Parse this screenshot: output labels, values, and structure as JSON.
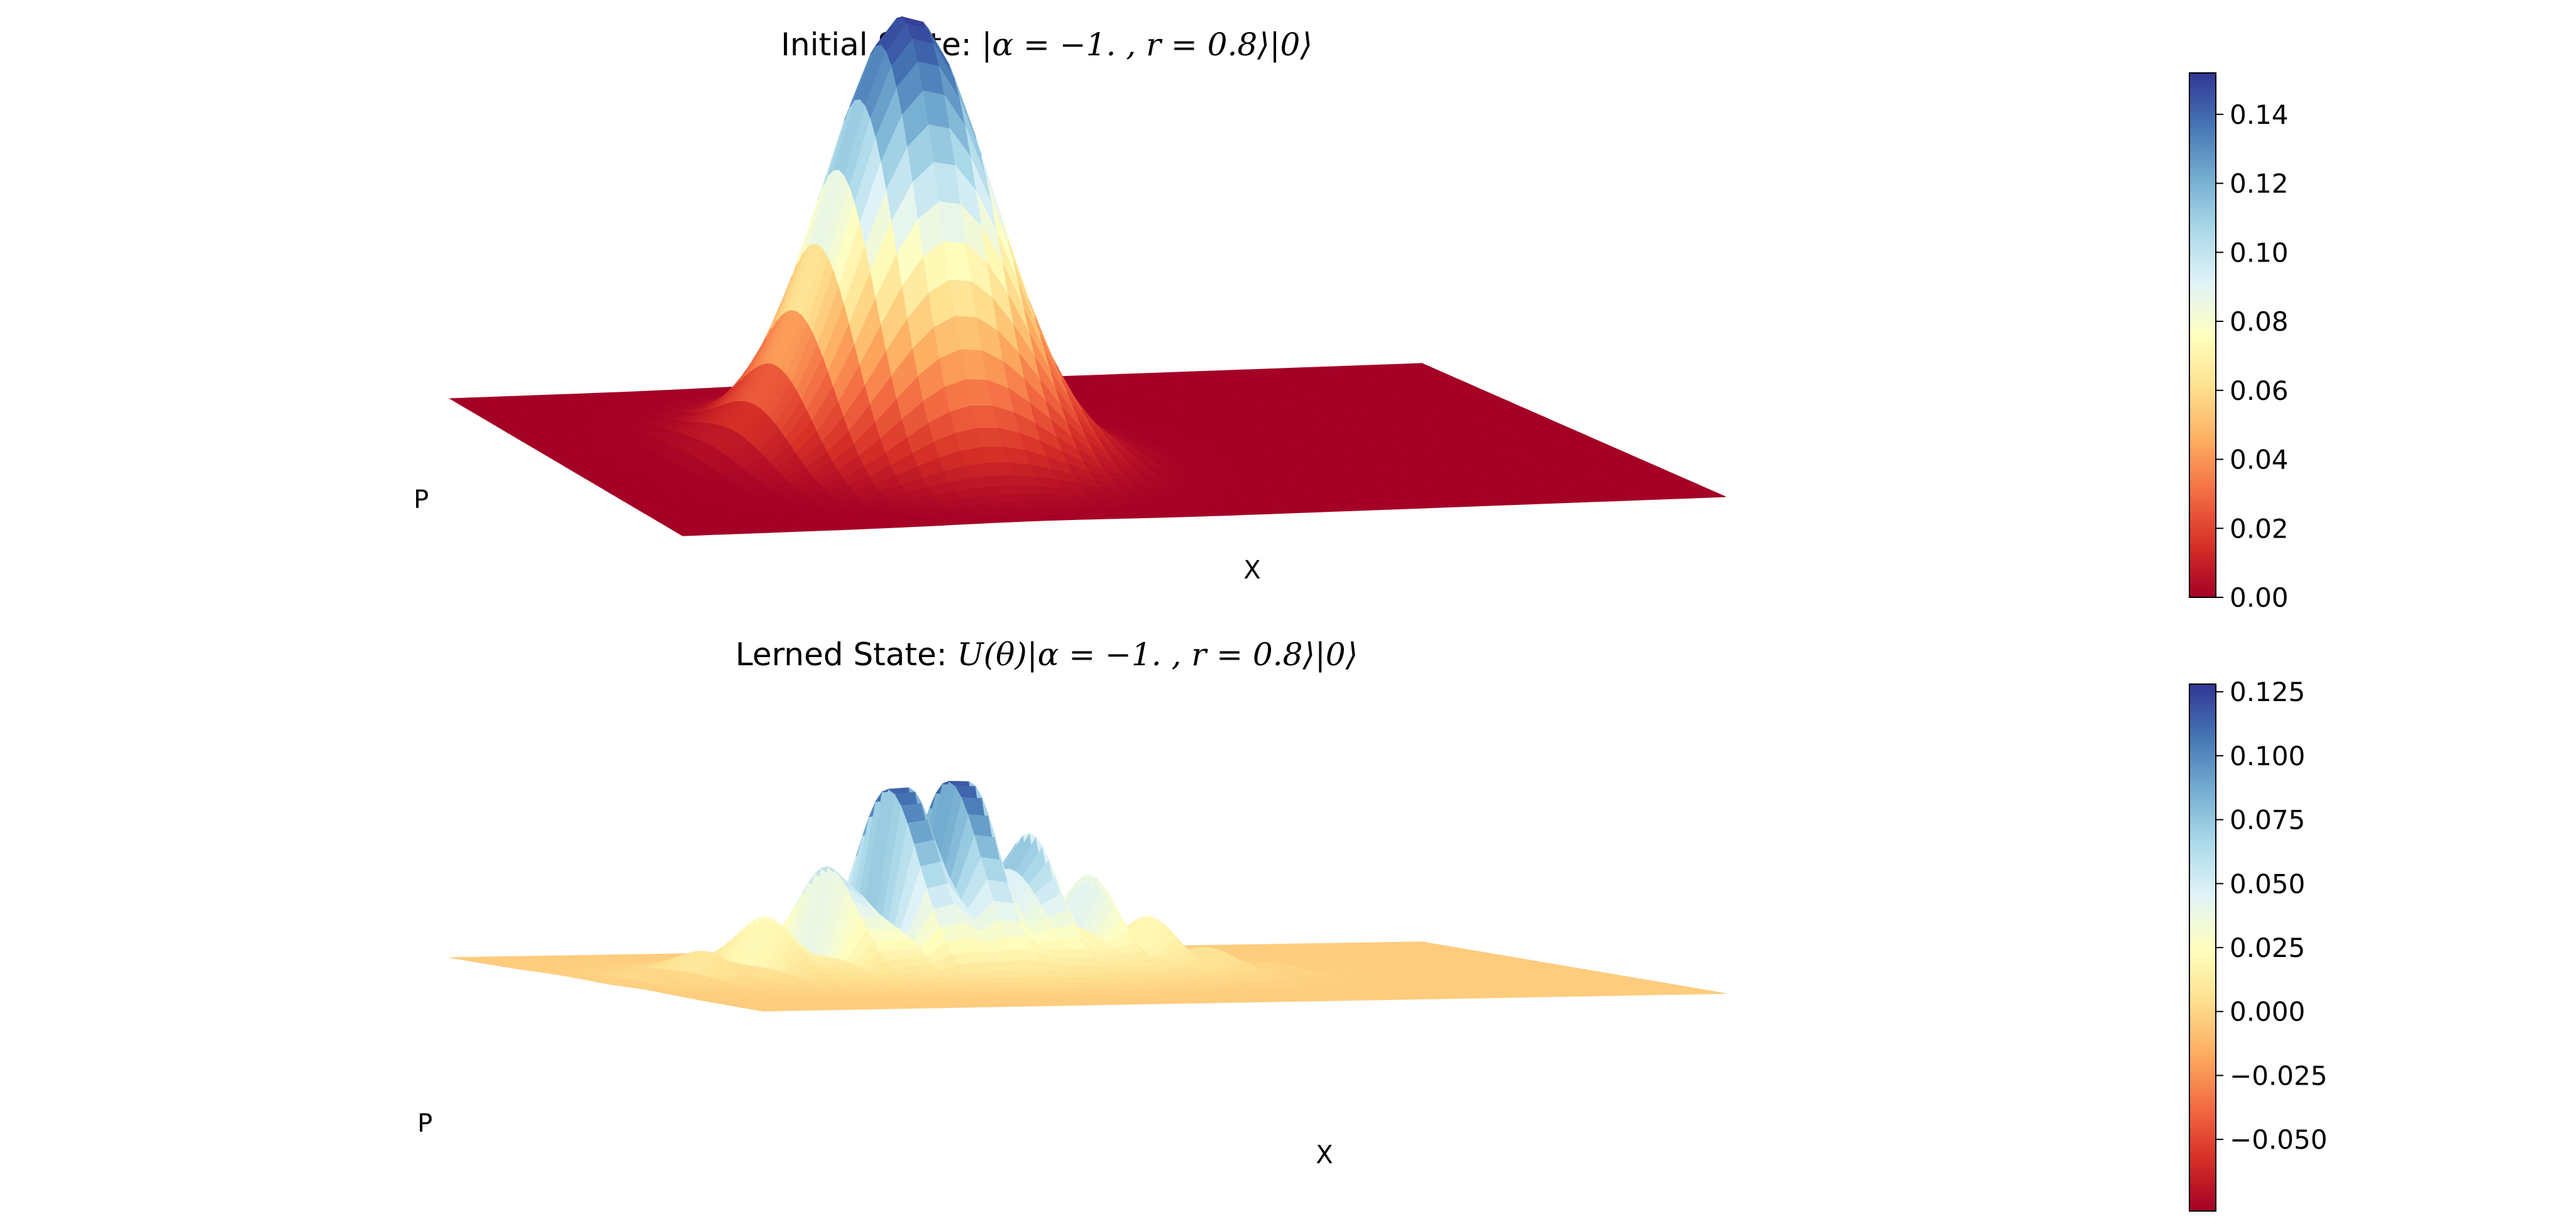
{
  "chart_data": [
    {
      "type": "surface3d",
      "title_prefix": "Initial State: ",
      "title_math": "|α = −1. , r = 0.8⟩|0⟩",
      "xlabel": "X",
      "ylabel": "P",
      "colormap": "RdYlBu",
      "z_range": [
        0.0,
        0.152
      ],
      "colorbar_ticks": [
        0.0,
        0.02,
        0.04,
        0.06,
        0.08,
        0.1,
        0.12,
        0.14
      ],
      "colorbar_tick_labels": [
        "0.00",
        "0.02",
        "0.04",
        "0.06",
        "0.08",
        "0.10",
        "0.12",
        "0.14"
      ],
      "colorbar_range": [
        0.0,
        0.152
      ],
      "peak_value": 0.152,
      "baseline_value": 0.0
    },
    {
      "type": "surface3d",
      "title_prefix": "Lerned State: ",
      "title_math": "U(θ)|α = −1. , r = 0.8⟩|0⟩",
      "xlabel": "X",
      "ylabel": "P",
      "colormap": "RdYlBu",
      "z_range": [
        -0.072,
        0.128
      ],
      "colorbar_ticks": [
        -0.05,
        -0.025,
        0.0,
        0.025,
        0.05,
        0.075,
        0.1,
        0.125
      ],
      "colorbar_tick_labels": [
        "−0.050",
        "−0.025",
        "0.000",
        "0.025",
        "0.050",
        "0.075",
        "0.100",
        "0.125"
      ],
      "colorbar_range": [
        -0.078,
        0.128
      ],
      "peak_value": 0.128,
      "min_value": -0.072,
      "baseline_value": 0.0
    }
  ],
  "colors": {
    "rdylbu": [
      "#a50026",
      "#d73027",
      "#f46d43",
      "#fdae61",
      "#fee090",
      "#ffffbf",
      "#e0f3f8",
      "#abd9e9",
      "#74add1",
      "#4575b4",
      "#313695"
    ]
  }
}
